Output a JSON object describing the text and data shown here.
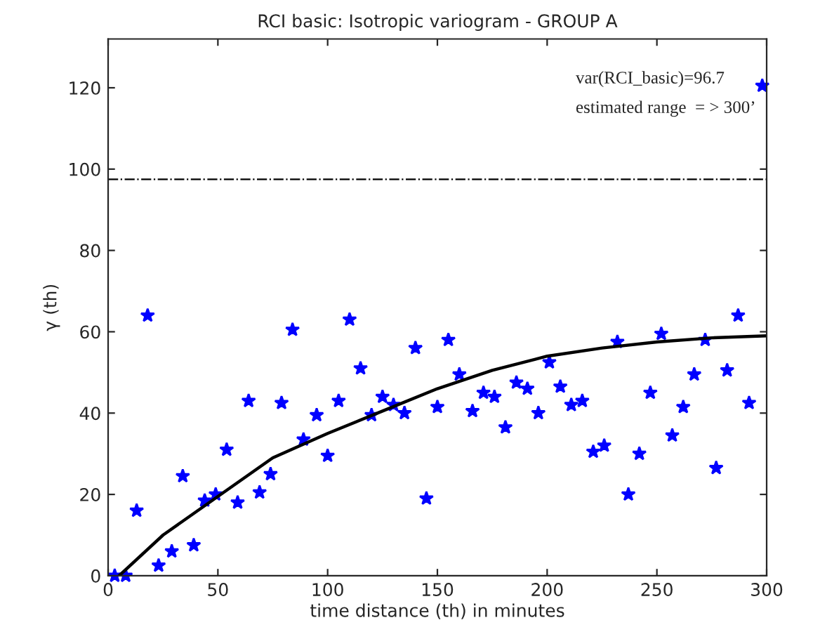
{
  "chart_data": {
    "type": "scatter",
    "title": "RCI basic: Isotropic variogram - GROUP A",
    "xlabel": "time distance (th) in minutes",
    "ylabel": "γ (th)",
    "series": [
      {
        "color": "#0000ff",
        "marker": "star",
        "x": [
          3,
          8,
          13,
          18,
          23,
          29,
          34,
          39,
          44,
          49,
          54,
          59,
          64,
          69,
          74,
          79,
          84,
          89,
          95,
          100,
          105,
          110,
          115,
          120,
          125,
          130,
          135,
          140,
          145,
          150,
          155,
          160,
          166,
          171,
          176,
          181,
          186,
          191,
          196,
          201,
          206,
          211,
          216,
          221,
          226,
          232,
          237,
          242,
          247,
          252,
          257,
          262,
          267,
          272,
          277,
          282,
          287,
          292,
          298
        ],
        "values": [
          0,
          0,
          16,
          64,
          2.5,
          6,
          24.5,
          7.5,
          18.5,
          20,
          31,
          18,
          43,
          20.5,
          25,
          42.5,
          60.5,
          33.5,
          39.5,
          29.5,
          43,
          63,
          51,
          39.5,
          44,
          42,
          40,
          56,
          19,
          41.5,
          58,
          49.5,
          40.5,
          45,
          44,
          36.5,
          47.5,
          46,
          40,
          52.5,
          46.5,
          42,
          43,
          30.5,
          32,
          57.5,
          20,
          30,
          45,
          59.5,
          34.5,
          41.5,
          49.5,
          58,
          26.5,
          50.5,
          64,
          42.5,
          120.5
        ]
      },
      {
        "type": "line",
        "color": "#000000",
        "marker": "none",
        "line_style": "solid",
        "x": [
          5,
          25,
          50,
          75,
          100,
          125,
          150,
          175,
          200,
          225,
          250,
          275,
          300
        ],
        "values": [
          0,
          10,
          19.5,
          29,
          35,
          40.5,
          46,
          50.5,
          54,
          56,
          57.5,
          58.5,
          59
        ]
      }
    ],
    "ref_lines": [
      {
        "axis": "y",
        "value": 97.5,
        "color": "#000000",
        "line_style": "dashdot"
      }
    ],
    "annotations": [
      "var(RCI_basic)=96.7",
      "estimated range  = > 300’"
    ],
    "xlim": [
      0,
      300
    ],
    "ylim": [
      0,
      132
    ],
    "xticks": [
      0,
      50,
      100,
      150,
      200,
      250,
      300
    ],
    "yticks": [
      0,
      20,
      40,
      60,
      80,
      100,
      120
    ],
    "grid": false,
    "legend": false
  }
}
